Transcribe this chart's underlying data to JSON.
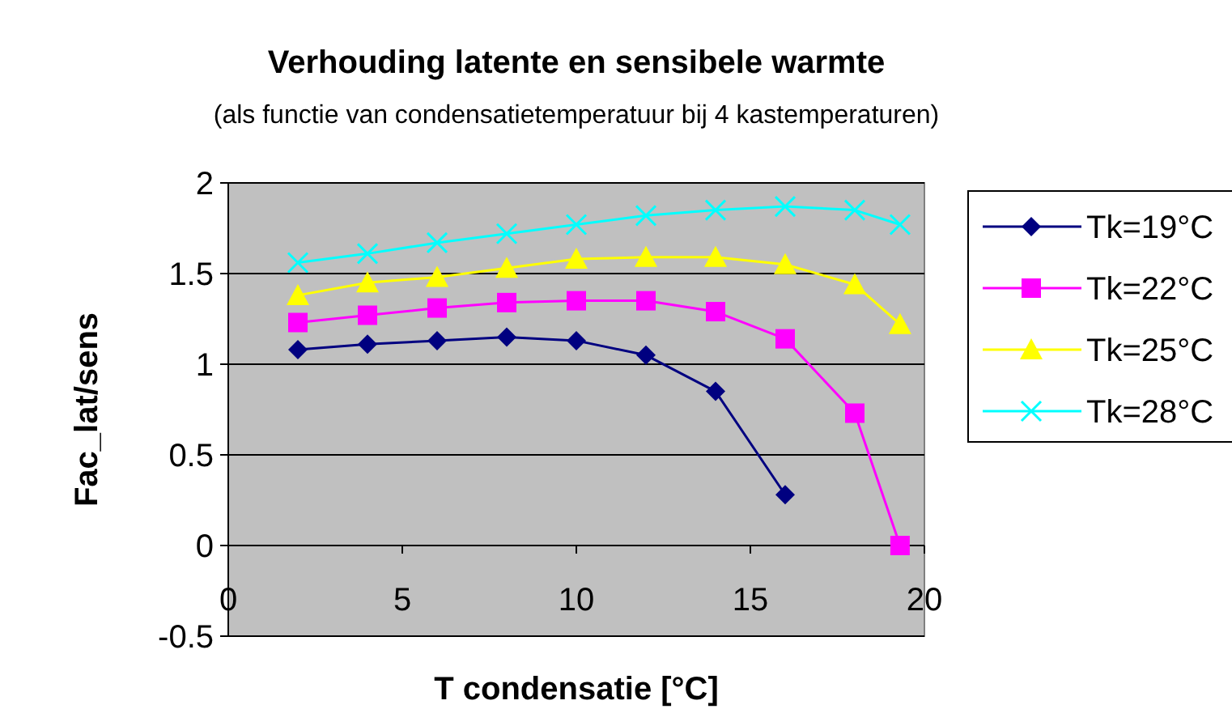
{
  "chart_data": {
    "type": "line",
    "title": "Verhouding latente en sensibele warmte",
    "subtitle": "(als functie van condensatietemperatuur bij 4 kastemperaturen)",
    "xlabel": "T condensatie [°C]",
    "ylabel": "Fac_lat/sens",
    "xlim": [
      0,
      20
    ],
    "xticks": [
      0,
      5,
      10,
      15,
      20
    ],
    "ylim": [
      -0.5,
      2
    ],
    "yticks": [
      -0.5,
      0,
      0.5,
      1,
      1.5,
      2
    ],
    "grid": "y",
    "legend": "right",
    "series": [
      {
        "name": "Tk=19°C",
        "color": "#000080",
        "marker": "diamond",
        "x": [
          2,
          4,
          6,
          8,
          10,
          12,
          14,
          16
        ],
        "values": [
          1.08,
          1.11,
          1.13,
          1.15,
          1.13,
          1.05,
          0.85,
          0.28
        ]
      },
      {
        "name": "Tk=22°C",
        "color": "#ff00ff",
        "marker": "square",
        "x": [
          2,
          4,
          6,
          8,
          10,
          12,
          14,
          16,
          18,
          19.3
        ],
        "values": [
          1.23,
          1.27,
          1.31,
          1.34,
          1.35,
          1.35,
          1.29,
          1.14,
          0.73,
          0
        ]
      },
      {
        "name": "Tk=25°C",
        "color": "#ffff00",
        "marker": "triangle",
        "x": [
          2,
          4,
          6,
          8,
          10,
          12,
          14,
          16,
          18,
          19.3
        ],
        "values": [
          1.38,
          1.45,
          1.48,
          1.53,
          1.58,
          1.59,
          1.59,
          1.55,
          1.44,
          1.22
        ]
      },
      {
        "name": "Tk=28°C",
        "color": "#00ffff",
        "marker": "cross",
        "x": [
          2,
          4,
          6,
          8,
          10,
          12,
          14,
          16,
          18,
          19.3
        ],
        "values": [
          1.56,
          1.61,
          1.67,
          1.72,
          1.77,
          1.82,
          1.85,
          1.87,
          1.85,
          1.77
        ]
      }
    ]
  }
}
